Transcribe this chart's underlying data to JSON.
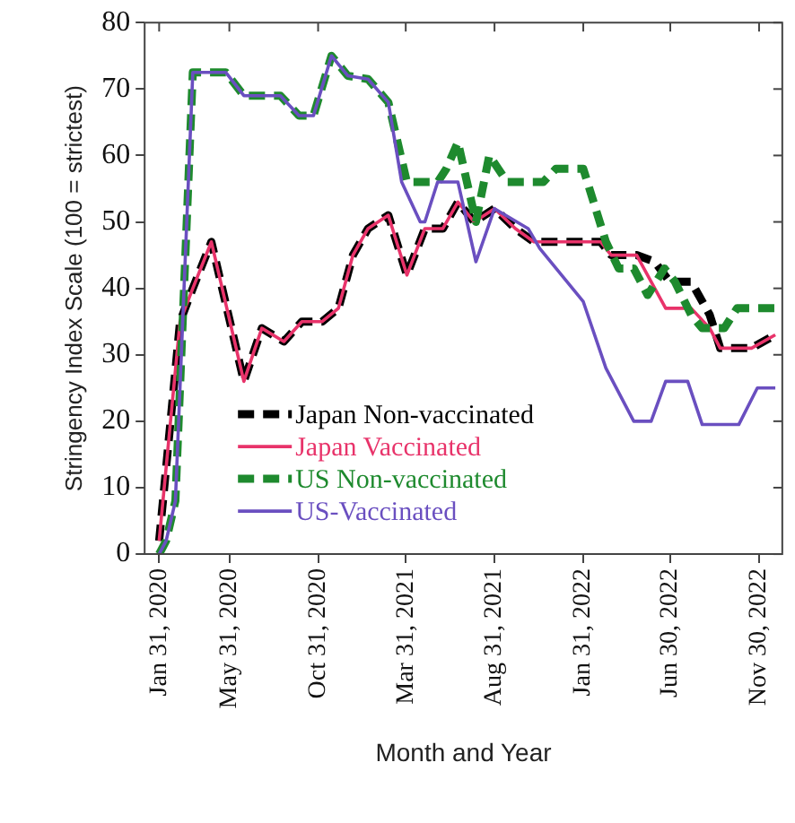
{
  "chart_data": {
    "type": "line",
    "xlabel": "Month and Year",
    "ylabel": "Stringency Index Scale (100 = strictest)",
    "xlim": [
      "2020-01-06",
      "2023-01-09"
    ],
    "xticks": [
      {
        "value": "2020-01-31",
        "label": "Jan 31, 2020"
      },
      {
        "value": "2020-05-31",
        "label": "May 31, 2020"
      },
      {
        "value": "2020-10-31",
        "label": "Oct 31, 2020"
      },
      {
        "value": "2021-03-31",
        "label": "Mar 31, 2021"
      },
      {
        "value": "2021-08-31",
        "label": "Aug 31, 2021"
      },
      {
        "value": "2022-01-31",
        "label": "Jan 31, 2022"
      },
      {
        "value": "2022-06-30",
        "label": "Jun 30, 2022"
      },
      {
        "value": "2022-11-30",
        "label": "Nov 30, 2022"
      }
    ],
    "ylim": [
      0,
      80
    ],
    "yticks": [
      0,
      10,
      20,
      30,
      40,
      50,
      60,
      70,
      80
    ],
    "grid": false,
    "legend": "bottom left",
    "marker": "none",
    "series": [
      {
        "name": "Japan Non-vaccinated",
        "color": "#000000",
        "line_style": "dashed",
        "x": [
          "2020-01-31",
          "2020-03-07",
          "2020-03-29",
          "2020-04-30",
          "2020-06-25",
          "2020-07-26",
          "2020-09-02",
          "2020-10-03",
          "2020-11-07",
          "2020-12-05",
          "2020-12-30",
          "2021-01-25",
          "2021-03-01",
          "2021-04-02",
          "2021-05-03",
          "2021-06-03",
          "2021-06-29",
          "2021-07-27",
          "2021-08-31",
          "2021-10-06",
          "2021-11-07",
          "2022-03-02",
          "2022-03-20",
          "2022-05-03",
          "2022-06-03",
          "2022-06-29",
          "2022-08-05",
          "2022-09-06",
          "2022-09-24",
          "2022-11-17",
          "2022-12-28"
        ],
        "values": [
          2,
          35,
          40,
          47,
          26,
          34,
          32,
          35,
          35,
          37,
          45,
          49,
          51,
          42,
          49,
          49,
          53,
          50,
          52,
          49,
          47,
          47,
          45,
          45,
          44,
          41,
          41,
          36,
          31,
          31,
          33
        ]
      },
      {
        "name": "Japan Vaccinated",
        "color": "#e8336a",
        "line_style": "solid",
        "x": [
          "2020-01-31",
          "2020-03-07",
          "2020-03-29",
          "2020-04-30",
          "2020-06-25",
          "2020-07-26",
          "2020-09-02",
          "2020-10-03",
          "2020-11-07",
          "2020-12-05",
          "2020-12-30",
          "2021-01-25",
          "2021-03-01",
          "2021-04-02",
          "2021-05-03",
          "2021-06-03",
          "2021-06-29",
          "2021-07-27",
          "2021-08-31",
          "2021-10-06",
          "2021-11-07",
          "2022-03-02",
          "2022-03-20",
          "2022-05-03",
          "2022-06-22",
          "2022-08-05",
          "2022-09-06",
          "2022-09-24",
          "2022-11-17",
          "2022-12-28"
        ],
        "values": [
          2,
          35,
          40,
          47,
          26,
          34,
          32,
          35,
          35,
          37,
          45,
          49,
          51,
          42,
          49,
          49,
          53,
          50,
          52,
          49,
          47,
          47,
          45,
          45,
          37,
          37,
          34,
          31,
          31,
          33
        ]
      },
      {
        "name": "US Non-vaccinated",
        "color": "#1e8a2e",
        "line_style": "dashed",
        "x": [
          "2020-01-31",
          "2020-02-12",
          "2020-02-28",
          "2020-03-29",
          "2020-05-25",
          "2020-06-25",
          "2020-08-27",
          "2020-09-28",
          "2020-10-23",
          "2020-11-23",
          "2020-12-21",
          "2021-01-25",
          "2021-03-01",
          "2021-04-02",
          "2021-05-25",
          "2021-06-09",
          "2021-06-29",
          "2021-07-30",
          "2021-08-22",
          "2021-09-22",
          "2021-11-23",
          "2021-12-15",
          "2022-01-31",
          "2022-03-11",
          "2022-04-02",
          "2022-04-28",
          "2022-05-22",
          "2022-06-20",
          "2022-07-08",
          "2022-08-05",
          "2022-08-24",
          "2022-10-01",
          "2022-10-23",
          "2022-12-28"
        ],
        "values": [
          0,
          2,
          8,
          72.5,
          72.5,
          69,
          69,
          66,
          66,
          75,
          72,
          71.5,
          68,
          56,
          56,
          58,
          62,
          50,
          60,
          56,
          56,
          58,
          58,
          47,
          43,
          43,
          39,
          43,
          41,
          36,
          34,
          34,
          37,
          37
        ]
      },
      {
        "name": "US-Vaccinated",
        "color": "#6a4fc0",
        "line_style": "solid",
        "x": [
          "2020-01-31",
          "2020-02-12",
          "2020-02-28",
          "2020-03-29",
          "2020-05-25",
          "2020-06-25",
          "2020-08-27",
          "2020-09-28",
          "2020-10-23",
          "2020-11-23",
          "2020-12-21",
          "2021-01-25",
          "2021-03-01",
          "2021-03-24",
          "2021-04-25",
          "2021-05-03",
          "2021-05-25",
          "2021-06-29",
          "2021-07-30",
          "2021-08-31",
          "2021-10-28",
          "2021-11-17",
          "2022-01-31",
          "2022-03-11",
          "2022-04-28",
          "2022-05-28",
          "2022-06-22",
          "2022-07-30",
          "2022-08-24",
          "2022-10-26",
          "2022-11-27",
          "2022-12-28"
        ],
        "values": [
          0,
          2,
          8,
          72.5,
          72.5,
          69,
          69,
          66,
          66,
          75,
          72,
          71.5,
          68,
          56,
          50,
          50,
          56,
          56,
          44,
          52,
          49,
          46,
          38,
          28,
          20,
          20,
          26,
          26,
          19.5,
          19.5,
          25,
          25
        ]
      }
    ]
  }
}
